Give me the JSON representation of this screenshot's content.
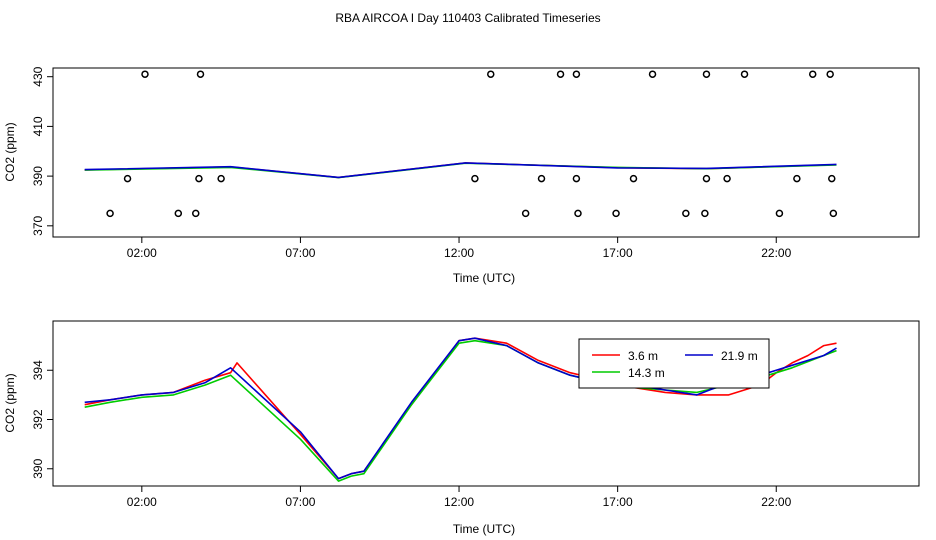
{
  "figure_title": "RBA AIRCOA I  Day 110403  Calibrated Timeseries",
  "chart_data": [
    {
      "type": "scatter+line",
      "title": "",
      "xlabel": "Time (UTC)",
      "ylabel": "CO2 (ppm)",
      "xlim": [
        -0.8,
        26.5
      ],
      "ylim": [
        365.5,
        433.5
      ],
      "xticks": [
        2,
        7,
        12,
        17,
        22
      ],
      "xtick_labels": [
        "02:00",
        "07:00",
        "12:00",
        "17:00",
        "22:00"
      ],
      "yticks": [
        370,
        390,
        410,
        430
      ],
      "ytick_labels": [
        "370",
        "390",
        "410",
        "430"
      ],
      "series": [
        {
          "name": "3.6 m",
          "color": "#ff0000",
          "x": [
            0.2,
            4.8,
            8.2,
            12.2,
            17.0,
            19.8,
            23.9
          ],
          "y": [
            392.5,
            393.7,
            389.5,
            395.3,
            393.4,
            393.0,
            394.6
          ]
        },
        {
          "name": "14.3 m",
          "color": "#00cc00",
          "x": [
            0.2,
            4.8,
            8.2,
            12.2,
            17.0,
            19.8,
            23.9
          ],
          "y": [
            392.4,
            393.5,
            389.4,
            395.2,
            393.5,
            393.0,
            394.5
          ]
        },
        {
          "name": "21.9 m",
          "color": "#0000cc",
          "x": [
            0.2,
            4.8,
            8.2,
            12.2,
            17.0,
            19.8,
            23.9
          ],
          "y": [
            392.6,
            393.8,
            389.5,
            395.3,
            393.3,
            393.1,
            394.7
          ]
        }
      ],
      "points": [
        {
          "x": 2.1,
          "y": 431
        },
        {
          "x": 3.85,
          "y": 431
        },
        {
          "x": 13.0,
          "y": 431
        },
        {
          "x": 15.2,
          "y": 431
        },
        {
          "x": 15.7,
          "y": 431
        },
        {
          "x": 18.1,
          "y": 431
        },
        {
          "x": 19.8,
          "y": 431
        },
        {
          "x": 21.0,
          "y": 431
        },
        {
          "x": 23.15,
          "y": 431
        },
        {
          "x": 23.7,
          "y": 431
        },
        {
          "x": 1.55,
          "y": 389
        },
        {
          "x": 3.8,
          "y": 389
        },
        {
          "x": 4.5,
          "y": 389
        },
        {
          "x": 12.5,
          "y": 389
        },
        {
          "x": 14.6,
          "y": 389
        },
        {
          "x": 15.7,
          "y": 389
        },
        {
          "x": 17.5,
          "y": 389
        },
        {
          "x": 19.8,
          "y": 389
        },
        {
          "x": 20.45,
          "y": 389
        },
        {
          "x": 22.65,
          "y": 389
        },
        {
          "x": 23.75,
          "y": 389
        },
        {
          "x": 1.0,
          "y": 375
        },
        {
          "x": 3.15,
          "y": 375
        },
        {
          "x": 3.7,
          "y": 375
        },
        {
          "x": 14.1,
          "y": 375
        },
        {
          "x": 15.75,
          "y": 375
        },
        {
          "x": 16.95,
          "y": 375
        },
        {
          "x": 19.15,
          "y": 375
        },
        {
          "x": 19.75,
          "y": 375
        },
        {
          "x": 22.1,
          "y": 375
        },
        {
          "x": 23.8,
          "y": 375
        }
      ]
    },
    {
      "type": "line",
      "title": "",
      "xlabel": "Time (UTC)",
      "ylabel": "CO2 (ppm)",
      "xlim": [
        -0.8,
        26.5
      ],
      "ylim": [
        389.3,
        396.0
      ],
      "xticks": [
        2,
        7,
        12,
        17,
        22
      ],
      "xtick_labels": [
        "02:00",
        "07:00",
        "12:00",
        "17:00",
        "22:00"
      ],
      "yticks": [
        390,
        392,
        394
      ],
      "ytick_labels": [
        "390",
        "392",
        "394"
      ],
      "legend": {
        "position": "top-right",
        "entries": [
          {
            "label": "3.6 m",
            "color": "#ff0000"
          },
          {
            "label": "14.3 m",
            "color": "#00cc00"
          },
          {
            "label": "21.9 m",
            "color": "#0000cc"
          }
        ]
      },
      "series": [
        {
          "name": "3.6 m",
          "color": "#ff0000",
          "x": [
            0.2,
            1.0,
            2.0,
            3.0,
            4.0,
            4.8,
            5.0,
            7.0,
            8.2,
            8.6,
            9.0,
            10.5,
            12.0,
            12.5,
            13.5,
            14.5,
            15.5,
            16.5,
            17.5,
            18.5,
            19.5,
            20.5,
            21.5,
            22.0,
            22.5,
            23.0,
            23.5,
            23.9
          ],
          "y": [
            392.6,
            392.8,
            393.0,
            393.1,
            393.6,
            393.9,
            394.3,
            391.4,
            389.6,
            389.8,
            389.9,
            392.6,
            395.2,
            395.3,
            395.1,
            394.4,
            393.9,
            393.6,
            393.3,
            393.1,
            393.0,
            393.0,
            393.4,
            393.9,
            394.3,
            394.6,
            395.0,
            395.1
          ]
        },
        {
          "name": "14.3 m",
          "color": "#00cc00",
          "x": [
            0.2,
            1.0,
            2.0,
            3.0,
            4.0,
            4.8,
            7.0,
            8.2,
            8.6,
            9.0,
            10.5,
            12.0,
            12.5,
            13.5,
            14.5,
            15.5,
            16.5,
            17.5,
            18.5,
            19.5,
            20.5,
            21.5,
            22.5,
            23.5,
            23.9
          ],
          "y": [
            392.5,
            392.7,
            392.9,
            393.0,
            393.4,
            393.8,
            391.2,
            389.5,
            389.7,
            389.8,
            392.6,
            395.1,
            395.2,
            395.0,
            394.3,
            393.8,
            393.5,
            393.3,
            393.2,
            393.1,
            393.4,
            393.7,
            394.1,
            394.6,
            394.8
          ]
        },
        {
          "name": "21.9 m",
          "color": "#0000cc",
          "x": [
            0.2,
            1.0,
            2.0,
            3.0,
            4.0,
            4.8,
            7.0,
            8.2,
            8.6,
            9.0,
            10.5,
            12.0,
            12.5,
            13.5,
            14.5,
            15.5,
            16.5,
            17.5,
            18.5,
            19.5,
            20.5,
            21.5,
            22.5,
            23.5,
            23.9
          ],
          "y": [
            392.7,
            392.8,
            393.0,
            393.1,
            393.5,
            394.1,
            391.5,
            389.6,
            389.8,
            389.9,
            392.7,
            395.2,
            395.3,
            395.0,
            394.3,
            393.8,
            393.5,
            393.4,
            393.2,
            393.0,
            393.5,
            393.8,
            394.2,
            394.6,
            394.9
          ]
        }
      ]
    }
  ]
}
